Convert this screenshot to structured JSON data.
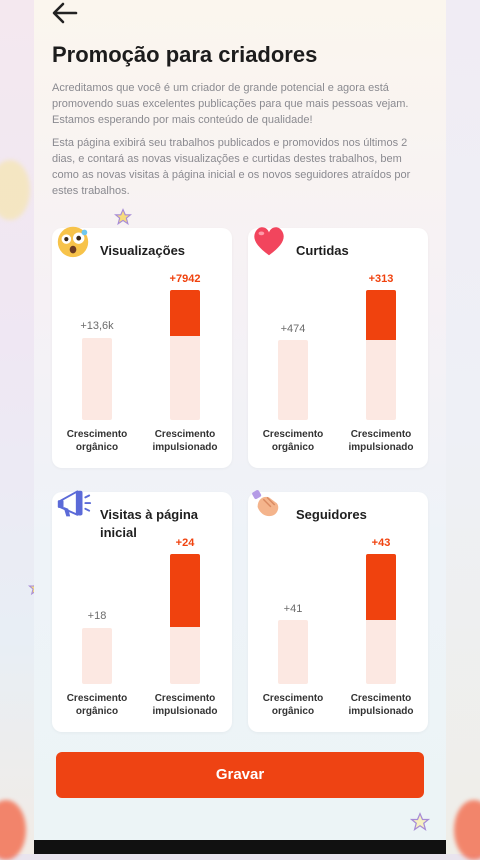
{
  "header": {
    "back_icon": "arrow-left-icon",
    "title": "Promoção para criadores"
  },
  "description": {
    "p1": "Acreditamos que você é um criador de grande potencial e agora está promovendo suas excelentes publicações para que mais pessoas vejam. Estamos esperando por mais conteúdo de qualidade!",
    "p2": "Esta página exibirá seu trabalhos publicados e promovidos nos últimos 2 dias, e contará as novas visualizações e curtidas destes trabalhos, bem como as novas visitas à página inicial e os novos seguidores atraídos por estes trabalhos."
  },
  "labels": {
    "organic": "Crescimento orgânico",
    "boosted": "Crescimento impulsionado"
  },
  "cards": [
    {
      "title": "Visualizações",
      "icon": "surprised-face-icon",
      "organic_value": "+13,6k",
      "boosted_value": "+7942"
    },
    {
      "title": "Curtidas",
      "icon": "heart-icon",
      "organic_value": "+474",
      "boosted_value": "+313"
    },
    {
      "title": "Visitas à página inicial",
      "icon": "megaphone-icon",
      "organic_value": "+18",
      "boosted_value": "+24"
    },
    {
      "title": "Seguidores",
      "icon": "handshake-icon",
      "organic_value": "+41",
      "boosted_value": "+43"
    }
  ],
  "button": {
    "label": "Gravar"
  },
  "colors": {
    "accent": "#ee4313",
    "bar_light": "#fce8e2"
  }
}
